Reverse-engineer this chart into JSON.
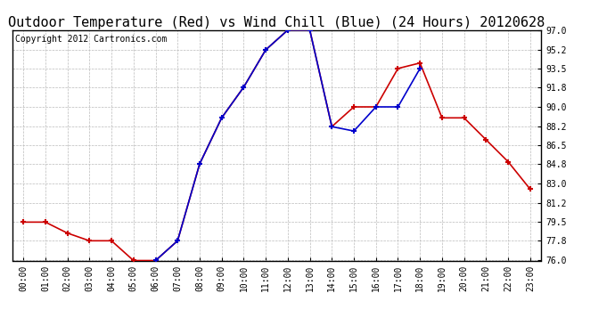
{
  "title": "Outdoor Temperature (Red) vs Wind Chill (Blue) (24 Hours) 20120628",
  "copyright": "Copyright 2012 Cartronics.com",
  "background_color": "#ffffff",
  "plot_bg_color": "#ffffff",
  "grid_color": "#bbbbbb",
  "hours": [
    0,
    1,
    2,
    3,
    4,
    5,
    6,
    7,
    8,
    9,
    10,
    11,
    12,
    13,
    14,
    15,
    16,
    17,
    18,
    19,
    20,
    21,
    22,
    23
  ],
  "temp_red": [
    79.5,
    79.5,
    78.5,
    77.8,
    77.8,
    76.0,
    76.0,
    77.8,
    84.8,
    89.0,
    91.8,
    95.2,
    97.0,
    97.0,
    88.2,
    90.0,
    90.0,
    93.5,
    94.0,
    89.0,
    89.0,
    87.0,
    85.0,
    82.5
  ],
  "wind_chill_blue": [
    null,
    null,
    null,
    null,
    null,
    null,
    76.0,
    77.8,
    84.8,
    89.0,
    91.8,
    95.2,
    97.0,
    97.0,
    88.2,
    87.8,
    90.0,
    90.0,
    93.5,
    null,
    null,
    null,
    null,
    null
  ],
  "ylim": [
    76.0,
    97.0
  ],
  "yticks": [
    76.0,
    77.8,
    79.5,
    81.2,
    83.0,
    84.8,
    86.5,
    88.2,
    90.0,
    91.8,
    93.5,
    95.2,
    97.0
  ],
  "red_color": "#cc0000",
  "blue_color": "#0000cc",
  "marker": "+",
  "markersize": 5,
  "linewidth": 1.2,
  "title_fontsize": 11,
  "tick_fontsize": 7,
  "copyright_fontsize": 7,
  "figwidth": 6.9,
  "figheight": 3.75,
  "dpi": 100
}
